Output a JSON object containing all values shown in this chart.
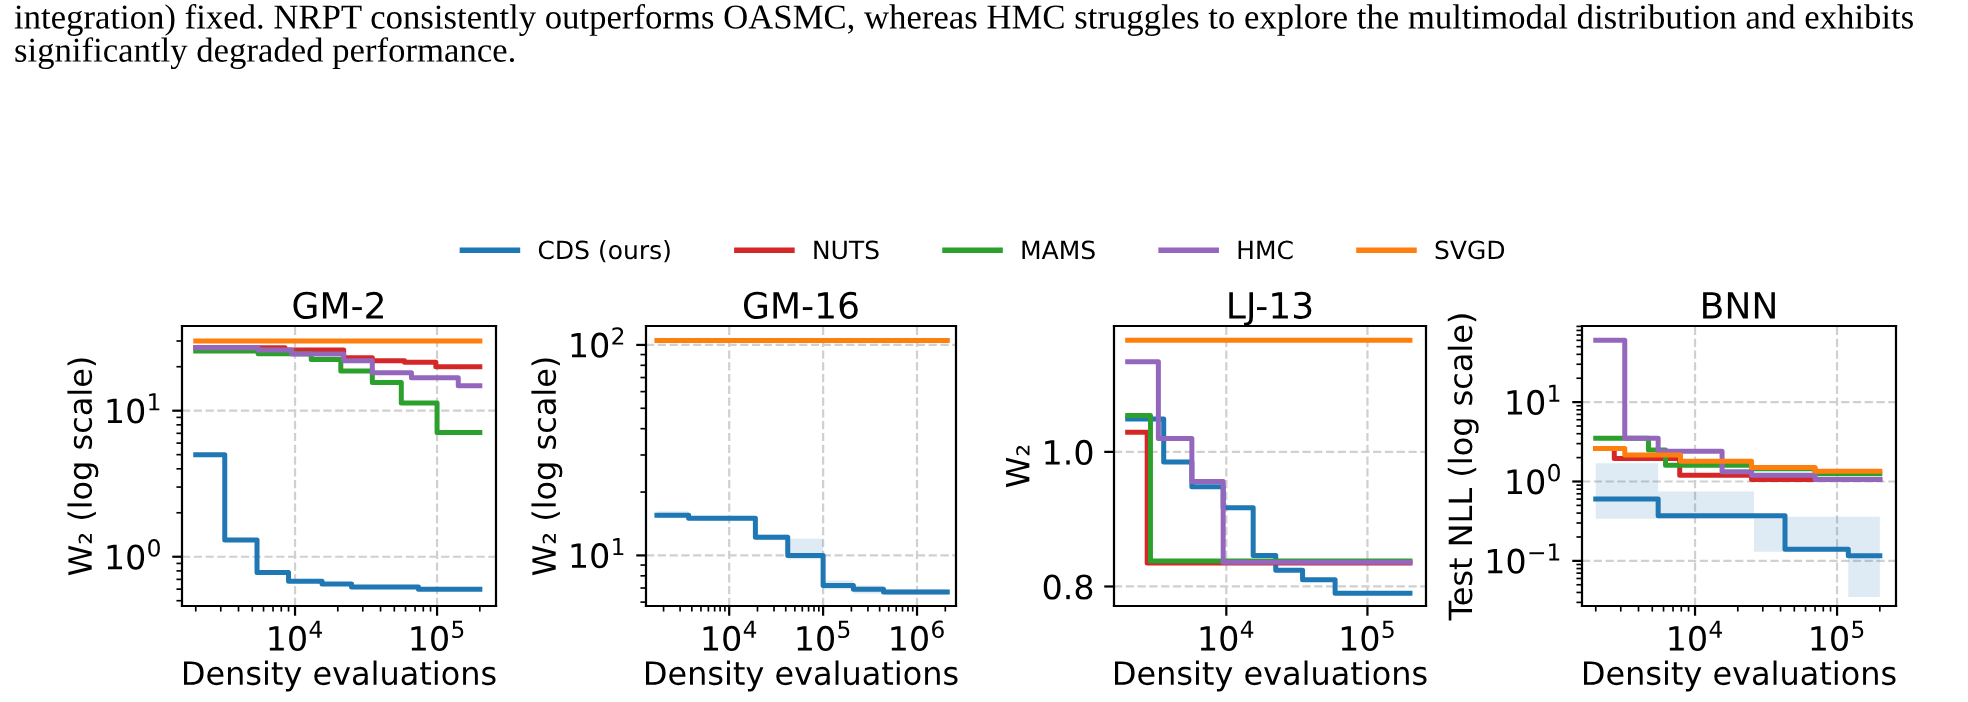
{
  "chart_data": [
    {
      "type": "step",
      "title": "GM-2",
      "xlabel": "Density evaluations",
      "ylabel": "W₂ (log scale)",
      "log": "xy",
      "grid": true,
      "legend": "top",
      "annotations": [
        "integration) fixed. NRPT consistently outperforms OASMC, whereas HMC struggles to explore the multimodal distribution and exhibits\nsignificantly degraded performance."
      ],
      "xlim": [
        1600,
        260000
      ],
      "ylim": [
        0.46,
        38
      ],
      "xticks": [
        {
          "value": 10000,
          "label": "10$^{4}$"
        },
        {
          "value": 100000,
          "label": "10$^{5}$"
        }
      ],
      "yticks": [
        {
          "value": 1,
          "label": "10$^{0}$"
        },
        {
          "value": 10,
          "label": "10$^{1}$"
        }
      ],
      "series": [
        {
          "name": "CDS (ours)",
          "color": "#1f77b4",
          "x": [
            2000,
            3200,
            5400,
            9000,
            15500,
            25000,
            74000,
            200000
          ],
          "values": [
            5.0,
            1.3,
            0.78,
            0.68,
            0.65,
            0.62,
            0.6,
            0.6
          ]
        },
        {
          "name": "NUTS",
          "color": "#d62728",
          "x": [
            2000,
            8500,
            22000,
            35000,
            59000,
            98000,
            200000
          ],
          "values": [
            27,
            26,
            23,
            22,
            21.5,
            20,
            20
          ]
        },
        {
          "name": "MAMS",
          "color": "#2ca02c",
          "x": [
            2000,
            5500,
            13000,
            21000,
            35000,
            56000,
            100000,
            200000
          ],
          "values": [
            25.6,
            24.5,
            22.4,
            18.7,
            15.6,
            11.3,
            7.1,
            7.1
          ]
        },
        {
          "name": "HMC",
          "color": "#9467bd",
          "x": [
            2000,
            5500,
            9500,
            22000,
            35000,
            66000,
            141000,
            200000
          ],
          "values": [
            27,
            26,
            24.4,
            22,
            18.2,
            16.8,
            14.8,
            14.8
          ]
        },
        {
          "name": "SVGD",
          "color": "#ff7f0e",
          "x": [
            2000,
            200000
          ],
          "values": [
            30,
            30
          ]
        }
      ]
    },
    {
      "type": "step",
      "title": "GM-16",
      "xlabel": "Density evaluations",
      "ylabel": "W₂ (log scale)",
      "log": "xy",
      "grid": true,
      "xlim": [
        1300,
        2600000
      ],
      "ylim": [
        5.75,
        123
      ],
      "xticks": [
        {
          "value": 10000,
          "label": "10$^{4}$"
        },
        {
          "value": 100000,
          "label": "10$^{5}$"
        },
        {
          "value": 1000000,
          "label": "10$^{6}$"
        }
      ],
      "yticks": [
        {
          "value": 10,
          "label": "10$^{1}$"
        },
        {
          "value": 100,
          "label": "10$^{2}$"
        }
      ],
      "series": [
        {
          "color": "#1f77b4",
          "x": [
            1700,
            3700,
            19000,
            42000,
            100000,
            210000,
            440000,
            2100000
          ],
          "values": [
            15.5,
            15.0,
            12.2,
            10,
            7.2,
            6.9,
            6.7,
            6.7
          ],
          "lower": [
            15.0,
            14.6,
            11.8,
            9.6,
            6.9,
            6.6,
            6.5,
            6.5
          ],
          "upper": [
            16.2,
            15.4,
            12.6,
            12.0,
            7.6,
            7.2,
            6.9,
            6.9
          ]
        },
        {
          "color": "#ff7f0e",
          "x": [
            1700,
            2100000
          ],
          "values": [
            105,
            105
          ]
        }
      ]
    },
    {
      "type": "step",
      "title": "LJ-13",
      "xlabel": "Density evaluations",
      "ylabel": "W₂",
      "log": "x",
      "grid": true,
      "xlim": [
        1600,
        260000
      ],
      "ylim": [
        0.771,
        1.187
      ],
      "xticks": [
        {
          "value": 10000,
          "label": "10$^{4}$"
        },
        {
          "value": 100000,
          "label": "10$^{5}$"
        }
      ],
      "yticks": [
        {
          "value": 0.8,
          "label": "0.8"
        },
        {
          "value": 1.0,
          "label": "1.0"
        }
      ],
      "series": [
        {
          "color": "#1f77b4",
          "x": [
            2000,
            3600,
            5700,
            9500,
            15500,
            22400,
            34700,
            59000,
            200000
          ],
          "values": [
            1.049,
            0.985,
            0.948,
            0.917,
            0.846,
            0.824,
            0.81,
            0.79,
            0.79
          ]
        },
        {
          "color": "#d62728",
          "x": [
            2000,
            2750,
            200000
          ],
          "values": [
            1.029,
            0.835,
            0.835
          ]
        },
        {
          "color": "#2ca02c",
          "x": [
            2000,
            2900,
            200000
          ],
          "values": [
            1.054,
            0.838,
            0.838
          ]
        },
        {
          "color": "#9467bd",
          "x": [
            2000,
            3300,
            5700,
            9500,
            200000
          ],
          "values": [
            1.134,
            1.02,
            0.956,
            0.836,
            0.836
          ]
        },
        {
          "color": "#ff7f0e",
          "x": [
            2000,
            200000
          ],
          "values": [
            1.166,
            1.166
          ]
        }
      ]
    },
    {
      "type": "step",
      "title": "BNN",
      "xlabel": "Density evaluations",
      "ylabel": "Test NLL (log scale)",
      "log": "xy",
      "grid": true,
      "xlim": [
        1600,
        260000
      ],
      "ylim": [
        0.027,
        91
      ],
      "xticks": [
        {
          "value": 10000,
          "label": "10$^{4}$"
        },
        {
          "value": 100000,
          "label": "10$^{5}$"
        }
      ],
      "yticks": [
        {
          "value": 0.1,
          "label": "10$^{−1}$"
        },
        {
          "value": 1,
          "label": "10$^{0}$"
        },
        {
          "value": 10,
          "label": "10$^{1}$"
        }
      ],
      "series": [
        {
          "color": "#1f77b4",
          "x": [
            2000,
            5500,
            26000,
            43000,
            120000,
            200000
          ],
          "values": [
            0.6,
            0.37,
            0.37,
            0.14,
            0.116,
            0.116
          ],
          "lower": [
            0.34,
            0.34,
            0.13,
            0.13,
            0.035,
            0.035
          ],
          "upper": [
            1.7,
            0.75,
            0.36,
            0.36,
            0.36,
            0.36
          ]
        },
        {
          "color": "#d62728",
          "x": [
            2000,
            2700,
            7800,
            25000,
            200000
          ],
          "values": [
            2.6,
            1.95,
            1.2,
            1.06,
            1.06
          ]
        },
        {
          "color": "#2ca02c",
          "x": [
            2000,
            4700,
            6200,
            25000,
            70000,
            200000
          ],
          "values": [
            3.5,
            2.5,
            1.6,
            1.45,
            1.25,
            1.25
          ]
        },
        {
          "color": "#9467bd",
          "x": [
            2000,
            3200,
            5500,
            15500,
            25000,
            70000,
            200000
          ],
          "values": [
            60,
            3.5,
            2.4,
            1.33,
            1.2,
            1.06,
            1.06
          ]
        },
        {
          "color": "#ff7f0e",
          "x": [
            2000,
            3200,
            7900,
            25000,
            70000,
            200000
          ],
          "values": [
            2.6,
            2.15,
            1.8,
            1.5,
            1.35,
            1.35
          ]
        }
      ]
    }
  ]
}
